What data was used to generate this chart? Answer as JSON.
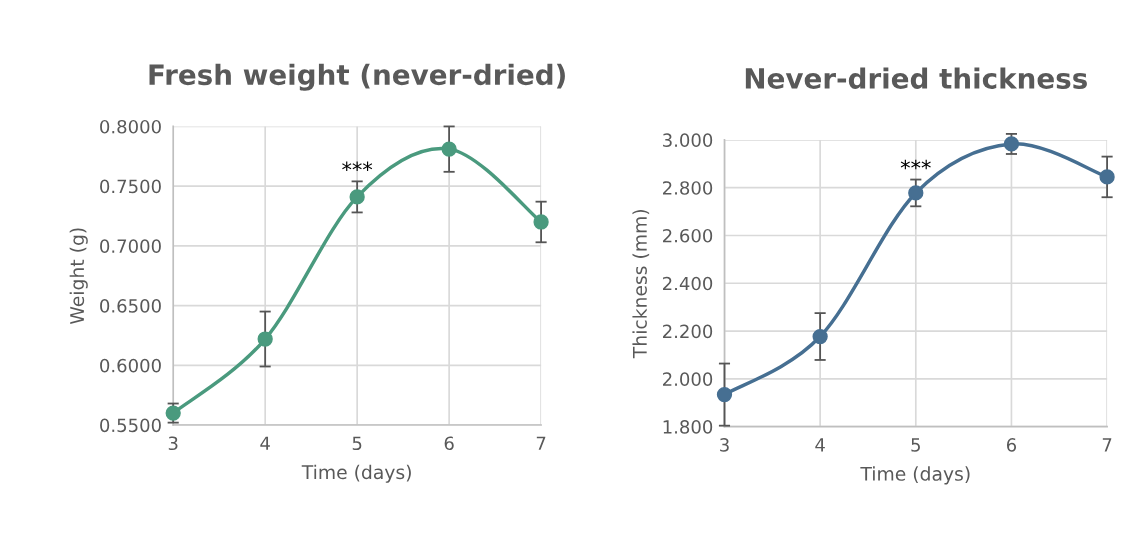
{
  "chart_data": [
    {
      "type": "line",
      "title": "Fresh weight (never-dried)",
      "xlabel": "Time (days)",
      "ylabel": "Weight (g)",
      "x": [
        3,
        4,
        5,
        6,
        7
      ],
      "xlim": [
        3,
        7
      ],
      "xticks": [
        3,
        4,
        5,
        6,
        7
      ],
      "ylim": [
        0.55,
        0.8
      ],
      "yticks": [
        {
          "value": 0.55,
          "label": "0.5500"
        },
        {
          "value": 0.6,
          "label": "0.6000"
        },
        {
          "value": 0.65,
          "label": "0.6500"
        },
        {
          "value": 0.7,
          "label": "0.7000"
        },
        {
          "value": 0.75,
          "label": "0.7500"
        },
        {
          "value": 0.8,
          "label": "0.8000"
        }
      ],
      "series": [
        {
          "color": "#4a9a7e",
          "values": [
            0.56,
            0.622,
            0.741,
            0.781,
            0.72
          ],
          "errors": [
            0.008,
            0.023,
            0.013,
            0.019,
            0.017
          ]
        }
      ],
      "annotations": [
        {
          "text": "***",
          "x": 5,
          "y": 0.754
        }
      ],
      "grid": true,
      "marker": "circle",
      "line_style": "solid",
      "legend": false
    },
    {
      "type": "line",
      "title": "Never-dried thickness",
      "xlabel": "Time (days)",
      "ylabel": "Thickness (mm)",
      "x": [
        3,
        4,
        5,
        6,
        7
      ],
      "xlim": [
        3,
        7
      ],
      "xticks": [
        3,
        4,
        5,
        6,
        7
      ],
      "ylim": [
        1.8,
        3.0
      ],
      "yticks": [
        {
          "value": 1.8,
          "label": "1.800"
        },
        {
          "value": 2.0,
          "label": "2.000"
        },
        {
          "value": 2.2,
          "label": "2.200"
        },
        {
          "value": 2.4,
          "label": "2.400"
        },
        {
          "value": 2.6,
          "label": "2.600"
        },
        {
          "value": 2.8,
          "label": "2.800"
        },
        {
          "value": 3.0,
          "label": "3.000"
        }
      ],
      "series": [
        {
          "color": "#466f92",
          "values": [
            1.934,
            2.177,
            2.778,
            2.983,
            2.845
          ],
          "errors": [
            0.13,
            0.098,
            0.056,
            0.042,
            0.085
          ]
        }
      ],
      "annotations": [
        {
          "text": "***",
          "x": 5,
          "y": 2.834
        }
      ],
      "grid": true,
      "marker": "circle",
      "line_style": "solid",
      "legend": false
    }
  ]
}
